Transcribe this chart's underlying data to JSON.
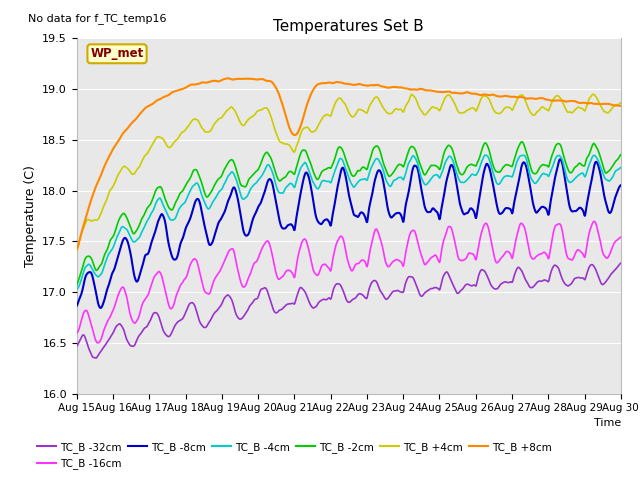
{
  "title": "Temperatures Set B",
  "subtitle": "No data for f_TC_temp16",
  "xlabel": "Time",
  "ylabel": "Temperature (C)",
  "ylim": [
    16.0,
    19.5
  ],
  "xlim": [
    0,
    360
  ],
  "xtick_labels": [
    "Aug 15",
    "Aug 16",
    "Aug 17",
    "Aug 18",
    "Aug 19",
    "Aug 20",
    "Aug 21",
    "Aug 22",
    "Aug 23",
    "Aug 24",
    "Aug 25",
    "Aug 26",
    "Aug 27",
    "Aug 28",
    "Aug 29",
    "Aug 30"
  ],
  "xtick_positions": [
    0,
    24,
    48,
    72,
    96,
    120,
    144,
    168,
    192,
    216,
    240,
    264,
    288,
    312,
    336,
    360
  ],
  "ytick_labels": [
    "16.0",
    "16.5",
    "17.0",
    "17.5",
    "18.0",
    "18.5",
    "19.0",
    "19.5"
  ],
  "ytick_positions": [
    16.0,
    16.5,
    17.0,
    17.5,
    18.0,
    18.5,
    19.0,
    19.5
  ],
  "legend_entries": [
    "TC_B -32cm",
    "TC_B -16cm",
    "TC_B -8cm",
    "TC_B -4cm",
    "TC_B -2cm",
    "TC_B +4cm",
    "TC_B +8cm"
  ],
  "line_colors": [
    "#9933cc",
    "#ff33ff",
    "#0000cc",
    "#00cccc",
    "#00cc00",
    "#cccc00",
    "#ff8800"
  ],
  "wp_met_color": "#800000",
  "wp_met_box_color": "#ffffcc",
  "wp_met_edge_color": "#ccaa00",
  "bg_color": "#e8e8e8",
  "fig_bg": "#ffffff",
  "grid_color": "#ffffff"
}
